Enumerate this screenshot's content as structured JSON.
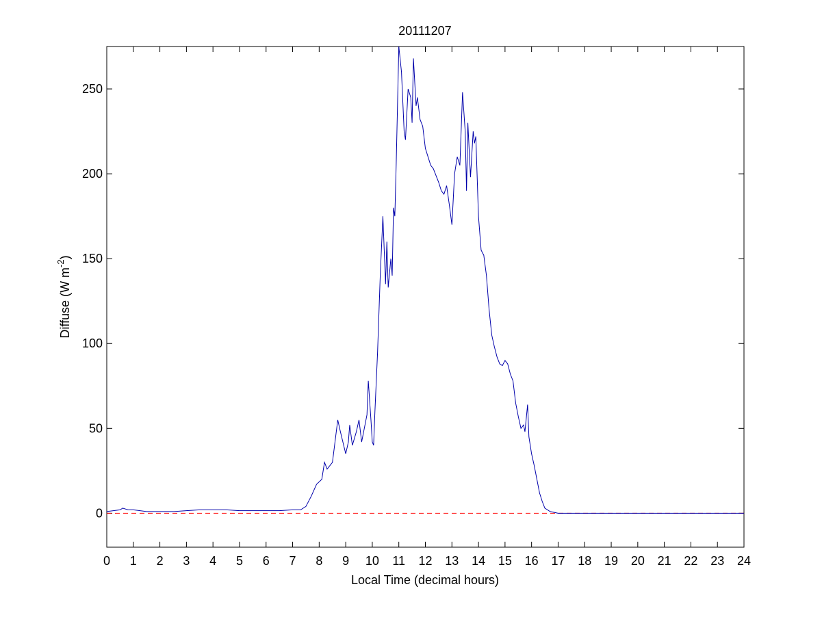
{
  "chart_data": {
    "type": "line",
    "title": "20111207",
    "xlabel": "Local Time (decimal hours)",
    "ylabel": [
      "Diffuse (W m",
      "-2",
      ")"
    ],
    "x": [
      0,
      0.5,
      0.6,
      0.8,
      1,
      1.5,
      2,
      2.5,
      3,
      3.5,
      4,
      4.5,
      5,
      5.5,
      6,
      6.5,
      7,
      7.3,
      7.5,
      7.7,
      7.9,
      8.1,
      8.2,
      8.3,
      8.5,
      8.7,
      8.8,
      9.0,
      9.1,
      9.15,
      9.25,
      9.4,
      9.5,
      9.6,
      9.7,
      9.8,
      9.85,
      9.95,
      10.0,
      10.05,
      10.1,
      10.2,
      10.3,
      10.4,
      10.5,
      10.55,
      10.6,
      10.7,
      10.75,
      10.8,
      10.85,
      10.9,
      11.0,
      11.1,
      11.2,
      11.25,
      11.35,
      11.45,
      11.5,
      11.55,
      11.65,
      11.7,
      11.8,
      11.9,
      12.0,
      12.1,
      12.2,
      12.3,
      12.5,
      12.6,
      12.7,
      12.8,
      12.9,
      13.0,
      13.1,
      13.2,
      13.3,
      13.4,
      13.5,
      13.55,
      13.6,
      13.7,
      13.8,
      13.85,
      13.9,
      14.0,
      14.1,
      14.2,
      14.3,
      14.4,
      14.5,
      14.6,
      14.7,
      14.8,
      14.9,
      15.0,
      15.1,
      15.2,
      15.3,
      15.4,
      15.5,
      15.6,
      15.7,
      15.75,
      15.85,
      15.9,
      16.0,
      16.1,
      16.2,
      16.3,
      16.4,
      16.5,
      16.7,
      17,
      18,
      19,
      20,
      21,
      22,
      23,
      24
    ],
    "series": [
      {
        "color": "#0000aa",
        "values": [
          1,
          2,
          3,
          2,
          2,
          1,
          1,
          1,
          1.5,
          2,
          2,
          2,
          1.5,
          1.5,
          1.5,
          1.5,
          2,
          2,
          4,
          10,
          17,
          20,
          30,
          26,
          30,
          55,
          48,
          35,
          42,
          52,
          40,
          48,
          55,
          42,
          50,
          58,
          78,
          55,
          42,
          40,
          60,
          95,
          140,
          175,
          135,
          160,
          133,
          150,
          140,
          180,
          175,
          205,
          275,
          260,
          225,
          220,
          250,
          245,
          230,
          268,
          240,
          245,
          232,
          228,
          215,
          210,
          205,
          203,
          195,
          190,
          188,
          193,
          182,
          170,
          200,
          210,
          205,
          248,
          225,
          190,
          230,
          198,
          225,
          218,
          222,
          175,
          155,
          152,
          140,
          120,
          105,
          98,
          92,
          88,
          87,
          90,
          88,
          82,
          78,
          65,
          57,
          50,
          52,
          48,
          64,
          45,
          35,
          28,
          20,
          12,
          7,
          3,
          1,
          0,
          0,
          0,
          0,
          0,
          0,
          0,
          0
        ]
      }
    ],
    "xlim": [
      0,
      24
    ],
    "ylim": [
      -20,
      275
    ],
    "xticks": [
      0,
      1,
      2,
      3,
      4,
      5,
      6,
      7,
      8,
      9,
      10,
      11,
      12,
      13,
      14,
      15,
      16,
      17,
      18,
      19,
      20,
      21,
      22,
      23,
      24
    ],
    "yticks": [
      0,
      50,
      100,
      150,
      200,
      250
    ],
    "hline": {
      "value": 0,
      "color": "#ff0000",
      "style": "dashed"
    }
  }
}
